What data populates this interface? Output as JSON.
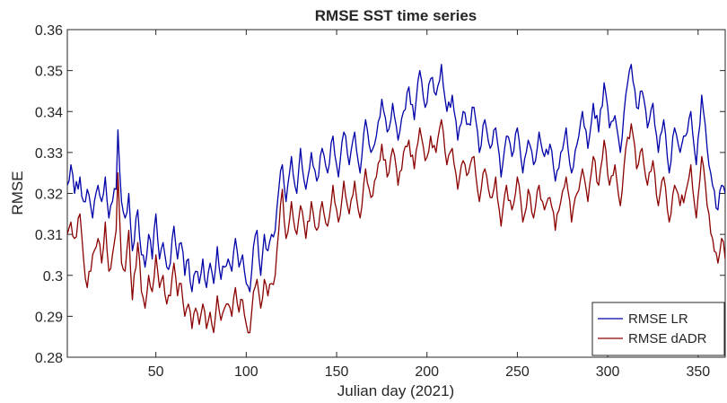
{
  "chart_data": {
    "type": "line",
    "title": "RMSE SST time series",
    "xlabel": "Julian day (2021)",
    "ylabel": "RMSE",
    "xlim": [
      1,
      365
    ],
    "ylim": [
      0.28,
      0.36
    ],
    "xticks": [
      50,
      100,
      150,
      200,
      250,
      300,
      350
    ],
    "yticks": [
      "0.28",
      "0.29",
      "0.3",
      "0.31",
      "0.32",
      "0.33",
      "0.34",
      "0.35",
      "0.36"
    ],
    "grid": false,
    "legend_position": "bottom-right",
    "series": [
      {
        "name": "RMSE LR",
        "color": "#0000a8",
        "anchors": [
          [
            1,
            0.322
          ],
          [
            3,
            0.327
          ],
          [
            5,
            0.32
          ],
          [
            8,
            0.324
          ],
          [
            10,
            0.318
          ],
          [
            12,
            0.321
          ],
          [
            15,
            0.314
          ],
          [
            18,
            0.322
          ],
          [
            20,
            0.318
          ],
          [
            22,
            0.324
          ],
          [
            24,
            0.314
          ],
          [
            26,
            0.318
          ],
          [
            28,
            0.321
          ],
          [
            29,
            0.3355
          ],
          [
            31,
            0.318
          ],
          [
            33,
            0.314
          ],
          [
            35,
            0.32
          ],
          [
            37,
            0.306
          ],
          [
            40,
            0.316
          ],
          [
            42,
            0.305
          ],
          [
            44,
            0.302
          ],
          [
            46,
            0.31
          ],
          [
            48,
            0.304
          ],
          [
            50,
            0.315
          ],
          [
            52,
            0.304
          ],
          [
            54,
            0.308
          ],
          [
            56,
            0.302
          ],
          [
            58,
            0.303
          ],
          [
            60,
            0.312
          ],
          [
            62,
            0.304
          ],
          [
            64,
            0.308
          ],
          [
            66,
            0.3
          ],
          [
            68,
            0.304
          ],
          [
            70,
            0.296
          ],
          [
            72,
            0.301
          ],
          [
            74,
            0.298
          ],
          [
            76,
            0.304
          ],
          [
            78,
            0.297
          ],
          [
            80,
            0.303
          ],
          [
            82,
            0.298
          ],
          [
            84,
            0.307
          ],
          [
            86,
            0.299
          ],
          [
            88,
            0.302
          ],
          [
            90,
            0.304
          ],
          [
            92,
            0.301
          ],
          [
            94,
            0.309
          ],
          [
            96,
            0.302
          ],
          [
            98,
            0.305
          ],
          [
            100,
            0.298
          ],
          [
            102,
            0.296
          ],
          [
            104,
            0.307
          ],
          [
            106,
            0.311
          ],
          [
            108,
            0.3
          ],
          [
            110,
            0.31
          ],
          [
            112,
            0.306
          ],
          [
            114,
            0.31
          ],
          [
            116,
            0.311
          ],
          [
            118,
            0.321
          ],
          [
            120,
            0.327
          ],
          [
            122,
            0.318
          ],
          [
            125,
            0.329
          ],
          [
            128,
            0.32
          ],
          [
            130,
            0.331
          ],
          [
            133,
            0.321
          ],
          [
            136,
            0.33
          ],
          [
            139,
            0.323
          ],
          [
            142,
            0.331
          ],
          [
            145,
            0.325
          ],
          [
            148,
            0.334
          ],
          [
            151,
            0.324
          ],
          [
            154,
            0.335
          ],
          [
            157,
            0.327
          ],
          [
            160,
            0.335
          ],
          [
            163,
            0.325
          ],
          [
            166,
            0.338
          ],
          [
            169,
            0.33
          ],
          [
            172,
            0.334
          ],
          [
            175,
            0.343
          ],
          [
            178,
            0.335
          ],
          [
            181,
            0.342
          ],
          [
            184,
            0.333
          ],
          [
            187,
            0.34
          ],
          [
            190,
            0.346
          ],
          [
            193,
            0.338
          ],
          [
            196,
            0.35
          ],
          [
            199,
            0.341
          ],
          [
            202,
            0.348
          ],
          [
            205,
            0.344
          ],
          [
            208,
            0.3515
          ],
          [
            211,
            0.34
          ],
          [
            214,
            0.344
          ],
          [
            217,
            0.333
          ],
          [
            220,
            0.34
          ],
          [
            223,
            0.337
          ],
          [
            226,
            0.341
          ],
          [
            229,
            0.33
          ],
          [
            232,
            0.338
          ],
          [
            235,
            0.331
          ],
          [
            238,
            0.336
          ],
          [
            241,
            0.324
          ],
          [
            244,
            0.334
          ],
          [
            247,
            0.329
          ],
          [
            250,
            0.336
          ],
          [
            253,
            0.325
          ],
          [
            256,
            0.333
          ],
          [
            259,
            0.327
          ],
          [
            262,
            0.335
          ],
          [
            265,
            0.329
          ],
          [
            268,
            0.332
          ],
          [
            271,
            0.323
          ],
          [
            274,
            0.33
          ],
          [
            277,
            0.336
          ],
          [
            280,
            0.325
          ],
          [
            283,
            0.332
          ],
          [
            286,
            0.34
          ],
          [
            289,
            0.331
          ],
          [
            292,
            0.342
          ],
          [
            295,
            0.335
          ],
          [
            298,
            0.347
          ],
          [
            301,
            0.336
          ],
          [
            304,
            0.339
          ],
          [
            307,
            0.33
          ],
          [
            310,
            0.344
          ],
          [
            313,
            0.3515
          ],
          [
            316,
            0.341
          ],
          [
            319,
            0.345
          ],
          [
            322,
            0.336
          ],
          [
            325,
            0.342
          ],
          [
            328,
            0.33
          ],
          [
            331,
            0.338
          ],
          [
            334,
            0.325
          ],
          [
            337,
            0.336
          ],
          [
            340,
            0.33
          ],
          [
            343,
            0.334
          ],
          [
            346,
            0.34
          ],
          [
            349,
            0.327
          ],
          [
            352,
            0.344
          ],
          [
            355,
            0.331
          ],
          [
            358,
            0.322
          ],
          [
            361,
            0.316
          ],
          [
            363,
            0.322
          ],
          [
            365,
            0.32
          ]
        ]
      },
      {
        "name": "RMSE dADR",
        "color": "#8b0000",
        "anchors": [
          [
            1,
            0.31
          ],
          [
            3,
            0.313
          ],
          [
            5,
            0.309
          ],
          [
            8,
            0.315
          ],
          [
            10,
            0.304
          ],
          [
            12,
            0.297
          ],
          [
            15,
            0.305
          ],
          [
            18,
            0.309
          ],
          [
            20,
            0.303
          ],
          [
            22,
            0.313
          ],
          [
            24,
            0.301
          ],
          [
            26,
            0.305
          ],
          [
            28,
            0.311
          ],
          [
            29,
            0.325
          ],
          [
            31,
            0.303
          ],
          [
            33,
            0.301
          ],
          [
            35,
            0.311
          ],
          [
            37,
            0.294
          ],
          [
            40,
            0.308
          ],
          [
            42,
            0.296
          ],
          [
            44,
            0.292
          ],
          [
            46,
            0.3
          ],
          [
            48,
            0.296
          ],
          [
            50,
            0.305
          ],
          [
            52,
            0.297
          ],
          [
            54,
            0.3
          ],
          [
            56,
            0.293
          ],
          [
            58,
            0.295
          ],
          [
            60,
            0.303
          ],
          [
            62,
            0.295
          ],
          [
            64,
            0.298
          ],
          [
            66,
            0.29
          ],
          [
            68,
            0.293
          ],
          [
            70,
            0.287
          ],
          [
            72,
            0.292
          ],
          [
            74,
            0.288
          ],
          [
            76,
            0.293
          ],
          [
            78,
            0.287
          ],
          [
            80,
            0.291
          ],
          [
            82,
            0.286
          ],
          [
            84,
            0.295
          ],
          [
            86,
            0.289
          ],
          [
            88,
            0.292
          ],
          [
            90,
            0.293
          ],
          [
            92,
            0.29
          ],
          [
            94,
            0.297
          ],
          [
            96,
            0.291
          ],
          [
            98,
            0.294
          ],
          [
            100,
            0.288
          ],
          [
            102,
            0.286
          ],
          [
            104,
            0.296
          ],
          [
            106,
            0.299
          ],
          [
            108,
            0.292
          ],
          [
            110,
            0.299
          ],
          [
            112,
            0.295
          ],
          [
            114,
            0.298
          ],
          [
            116,
            0.3
          ],
          [
            118,
            0.311
          ],
          [
            120,
            0.321
          ],
          [
            122,
            0.309
          ],
          [
            125,
            0.318
          ],
          [
            128,
            0.31
          ],
          [
            130,
            0.317
          ],
          [
            133,
            0.309
          ],
          [
            136,
            0.318
          ],
          [
            139,
            0.311
          ],
          [
            142,
            0.318
          ],
          [
            145,
            0.312
          ],
          [
            148,
            0.322
          ],
          [
            151,
            0.313
          ],
          [
            154,
            0.323
          ],
          [
            157,
            0.315
          ],
          [
            160,
            0.323
          ],
          [
            163,
            0.314
          ],
          [
            166,
            0.326
          ],
          [
            169,
            0.319
          ],
          [
            172,
            0.324
          ],
          [
            175,
            0.332
          ],
          [
            178,
            0.324
          ],
          [
            181,
            0.331
          ],
          [
            184,
            0.322
          ],
          [
            187,
            0.33
          ],
          [
            190,
            0.333
          ],
          [
            193,
            0.326
          ],
          [
            196,
            0.336
          ],
          [
            199,
            0.328
          ],
          [
            202,
            0.334
          ],
          [
            205,
            0.33
          ],
          [
            208,
            0.338
          ],
          [
            211,
            0.327
          ],
          [
            214,
            0.331
          ],
          [
            217,
            0.321
          ],
          [
            220,
            0.328
          ],
          [
            223,
            0.325
          ],
          [
            226,
            0.329
          ],
          [
            229,
            0.318
          ],
          [
            232,
            0.326
          ],
          [
            235,
            0.319
          ],
          [
            238,
            0.324
          ],
          [
            241,
            0.312
          ],
          [
            244,
            0.322
          ],
          [
            247,
            0.316
          ],
          [
            250,
            0.324
          ],
          [
            253,
            0.313
          ],
          [
            256,
            0.321
          ],
          [
            259,
            0.314
          ],
          [
            262,
            0.322
          ],
          [
            265,
            0.316
          ],
          [
            268,
            0.319
          ],
          [
            271,
            0.311
          ],
          [
            274,
            0.318
          ],
          [
            277,
            0.324
          ],
          [
            280,
            0.313
          ],
          [
            283,
            0.32
          ],
          [
            286,
            0.326
          ],
          [
            289,
            0.318
          ],
          [
            292,
            0.329
          ],
          [
            295,
            0.322
          ],
          [
            298,
            0.333
          ],
          [
            301,
            0.322
          ],
          [
            304,
            0.327
          ],
          [
            307,
            0.317
          ],
          [
            310,
            0.331
          ],
          [
            313,
            0.337
          ],
          [
            316,
            0.326
          ],
          [
            319,
            0.331
          ],
          [
            322,
            0.322
          ],
          [
            325,
            0.328
          ],
          [
            328,
            0.317
          ],
          [
            331,
            0.324
          ],
          [
            334,
            0.313
          ],
          [
            337,
            0.322
          ],
          [
            340,
            0.317
          ],
          [
            343,
            0.32
          ],
          [
            346,
            0.327
          ],
          [
            349,
            0.314
          ],
          [
            352,
            0.329
          ],
          [
            355,
            0.317
          ],
          [
            358,
            0.309
          ],
          [
            361,
            0.303
          ],
          [
            363,
            0.309
          ],
          [
            365,
            0.304
          ]
        ]
      }
    ]
  }
}
